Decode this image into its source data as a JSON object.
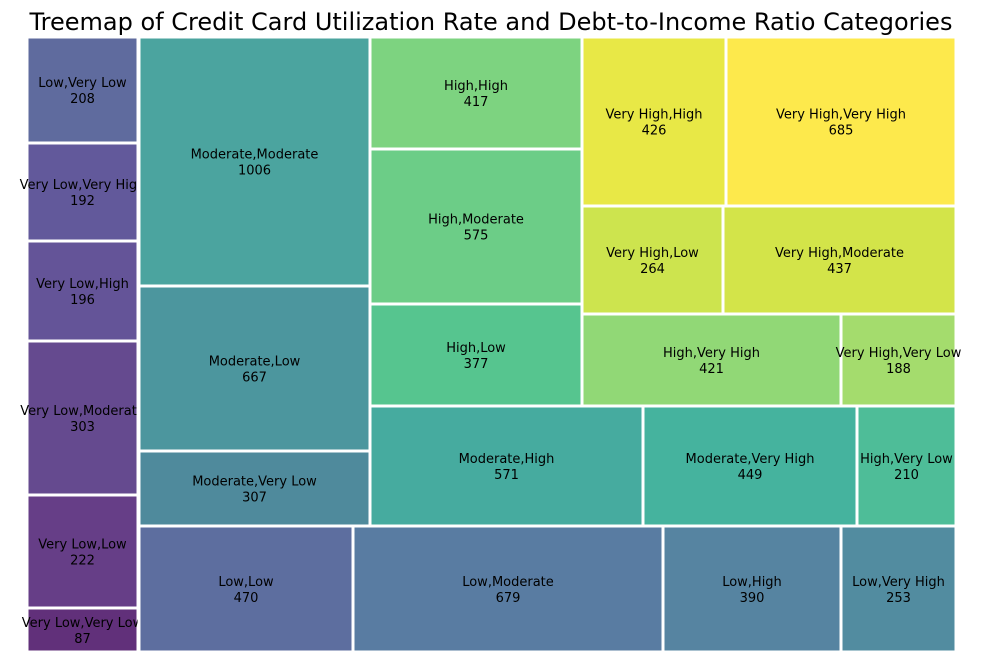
{
  "chart_data": {
    "type": "treemap",
    "title": "Treemap of Credit Card Utilization Rate and Debt-to-Income Ratio Categories",
    "colormap": "viridis",
    "items": [
      {
        "label": "Low,Very Low",
        "value": 208,
        "color": "#5f6b9e"
      },
      {
        "label": "Very Low,Very High",
        "value": 192,
        "color": "#62599b"
      },
      {
        "label": "Very Low,High",
        "value": 196,
        "color": "#645498"
      },
      {
        "label": "Very Low,Moderate",
        "value": 303,
        "color": "#654a8f"
      },
      {
        "label": "Very Low,Low",
        "value": 222,
        "color": "#663e87"
      },
      {
        "label": "Very Low,Very Low",
        "value": 87,
        "color": "#61307a"
      },
      {
        "label": "Moderate,Moderate",
        "value": 1006,
        "color": "#4ba49f"
      },
      {
        "label": "Moderate,Low",
        "value": 667,
        "color": "#4c969e"
      },
      {
        "label": "Moderate,Very Low",
        "value": 307,
        "color": "#4f8a9c"
      },
      {
        "label": "High,High",
        "value": 417,
        "color": "#7dd380"
      },
      {
        "label": "High,Moderate",
        "value": 575,
        "color": "#6ccd87"
      },
      {
        "label": "High,Low",
        "value": 377,
        "color": "#56c58f"
      },
      {
        "label": "Very High,High",
        "value": 426,
        "color": "#e8e846"
      },
      {
        "label": "Very High,Very High",
        "value": 685,
        "color": "#fde94c"
      },
      {
        "label": "Very High,Low",
        "value": 264,
        "color": "#cde44e"
      },
      {
        "label": "Very High,Moderate",
        "value": 437,
        "color": "#d3e449"
      },
      {
        "label": "High,Very High",
        "value": 421,
        "color": "#91d876"
      },
      {
        "label": "Very High,Very Low",
        "value": 188,
        "color": "#a4dc6d"
      },
      {
        "label": "Moderate,High",
        "value": 571,
        "color": "#46ab9f"
      },
      {
        "label": "Moderate,Very High",
        "value": 449,
        "color": "#45b39e"
      },
      {
        "label": "High,Very Low",
        "value": 210,
        "color": "#4ebd98"
      },
      {
        "label": "Low,Low",
        "value": 470,
        "color": "#5d6e9f"
      },
      {
        "label": "Low,Moderate",
        "value": 679,
        "color": "#597ca2"
      },
      {
        "label": "Low,High",
        "value": 390,
        "color": "#5684a1"
      },
      {
        "label": "Low,Very High",
        "value": 253,
        "color": "#528ca0"
      }
    ]
  }
}
